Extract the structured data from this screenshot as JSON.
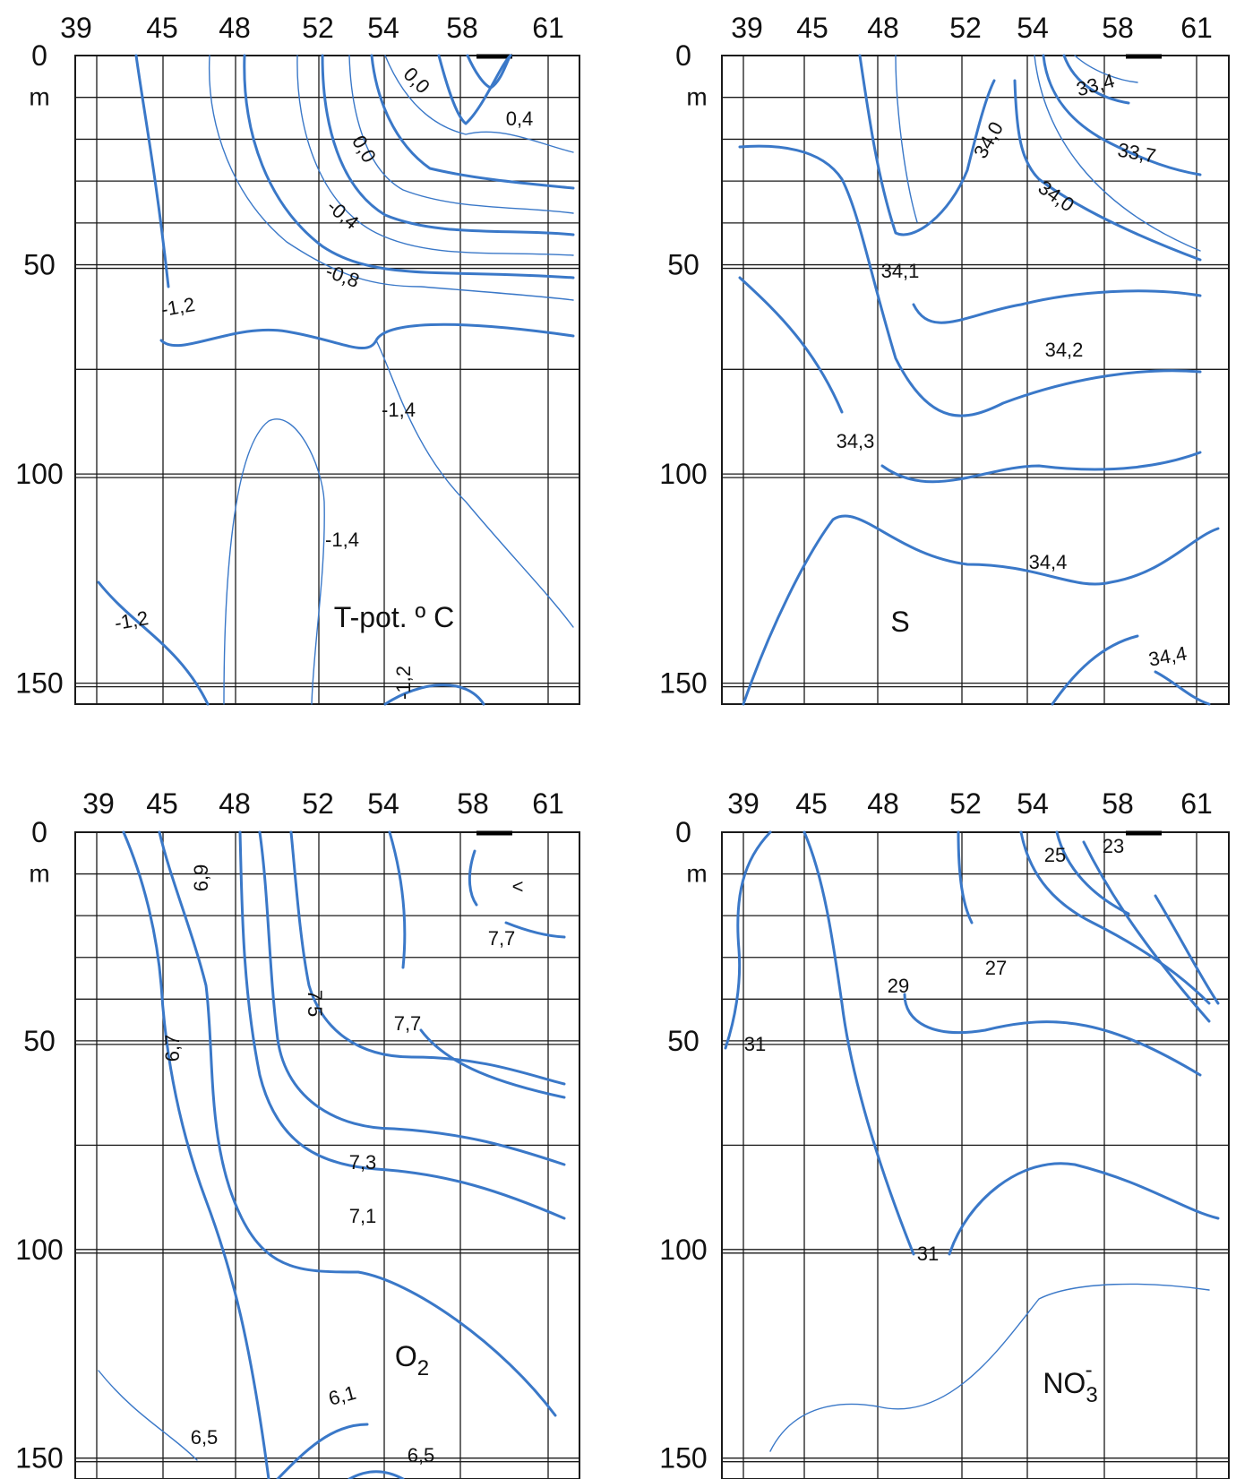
{
  "chart_data": [
    {
      "type": "contour",
      "panel": "temperature",
      "title": "T-pot. º C",
      "stations": [
        "39",
        "45",
        "48",
        "52",
        "54",
        "58",
        "61"
      ],
      "depth_ticks": [
        "0",
        "50",
        "100",
        "150"
      ],
      "depth_unit": "m",
      "ylim": [
        0,
        155
      ],
      "contour_labels": [
        "0,0",
        "0,4",
        "0,0",
        "-0,4",
        "-0,8",
        "-1,2",
        "-1,4",
        "-1,4",
        "-1,2",
        "-1,2"
      ]
    },
    {
      "type": "contour",
      "panel": "salinity",
      "title": "S",
      "stations": [
        "39",
        "45",
        "48",
        "52",
        "54",
        "58",
        "61"
      ],
      "depth_ticks": [
        "0",
        "50",
        "100",
        "150"
      ],
      "depth_unit": "m",
      "ylim": [
        0,
        155
      ],
      "contour_labels": [
        "33,4",
        "34,0",
        "33,7",
        "34,0",
        "34,1",
        "34,2",
        "34,3",
        "34,4",
        "34,4"
      ]
    },
    {
      "type": "contour",
      "panel": "oxygen",
      "title": "O2",
      "stations": [
        "39",
        "45",
        "48",
        "52",
        "54",
        "58",
        "61"
      ],
      "depth_ticks": [
        "0",
        "50",
        "100",
        "150"
      ],
      "depth_unit": "m",
      "ylim": [
        0,
        155
      ],
      "contour_labels": [
        "6,9",
        "<",
        "7,7",
        "7 5",
        "7,7",
        "6,7",
        "7,3",
        "7,1",
        "6,1",
        "6,5",
        "6,5"
      ]
    },
    {
      "type": "contour",
      "panel": "nitrate",
      "title": "NO3-",
      "stations": [
        "39",
        "45",
        "48",
        "52",
        "54",
        "58",
        "61"
      ],
      "depth_ticks": [
        "0",
        "50",
        "100",
        "150"
      ],
      "depth_unit": "m",
      "ylim": [
        0,
        155
      ],
      "contour_labels": [
        "25",
        "23",
        "27",
        "29",
        "31",
        "31"
      ]
    }
  ]
}
